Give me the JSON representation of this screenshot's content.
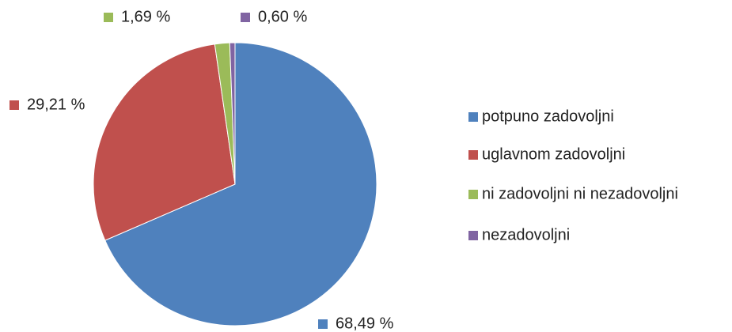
{
  "chart_data": {
    "type": "pie",
    "categories": [
      "potpuno zadovoljni",
      "uglavnom zadovoljni",
      "ni zadovoljni ni nezadovoljni",
      "nezadovoljni"
    ],
    "values": [
      68.49,
      29.21,
      1.69,
      0.6
    ],
    "value_labels": [
      "68,49 %",
      "29,21 %",
      "1,69 %",
      "0,60 %"
    ],
    "colors": [
      "#4f81bd",
      "#c0504d",
      "#9bbb59",
      "#8064a2"
    ],
    "legend": "right"
  }
}
